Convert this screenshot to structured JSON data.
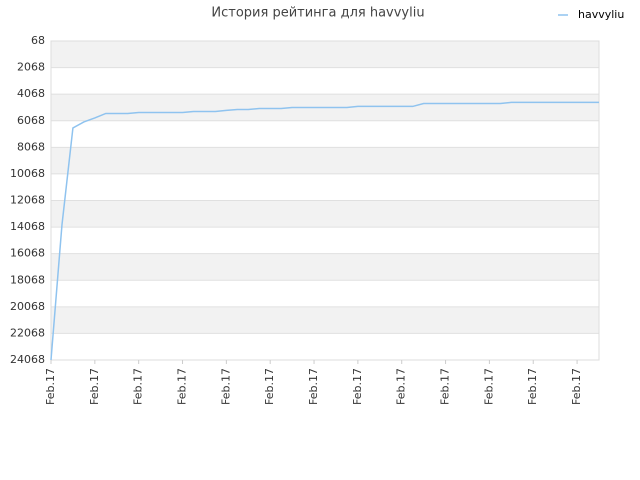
{
  "chart_data": {
    "type": "line",
    "title": "История рейтинга для havvyliu",
    "categories": [
      "Feb.17",
      null,
      null,
      null,
      "Feb.17",
      null,
      null,
      null,
      "Feb.17",
      null,
      null,
      null,
      "Feb.17",
      null,
      null,
      null,
      "Feb.17",
      null,
      null,
      null,
      "Feb.17",
      null,
      null,
      null,
      "Feb.17",
      null,
      null,
      null,
      "Feb.17",
      null,
      null,
      null,
      "Feb.17",
      null,
      null,
      null,
      "Feb.17",
      null,
      null,
      null,
      "Feb.17",
      null,
      null,
      null,
      "Feb.17",
      null,
      null,
      null,
      "Feb.17",
      null,
      null
    ],
    "series": [
      {
        "name": "havvyliu",
        "color": "#8fc3ef",
        "values": [
          24068,
          13905,
          6610,
          6160,
          5860,
          5520,
          5520,
          5520,
          5445,
          5445,
          5445,
          5445,
          5445,
          5370,
          5370,
          5370,
          5290,
          5220,
          5220,
          5145,
          5145,
          5145,
          5070,
          5070,
          5070,
          5070,
          5070,
          5070,
          4990,
          4990,
          4990,
          4990,
          4990,
          4990,
          4770,
          4770,
          4770,
          4770,
          4770,
          4770,
          4770,
          4770,
          4690,
          4690,
          4690,
          4690,
          4690,
          4690,
          4690,
          4690,
          4690
        ]
      }
    ],
    "ylim": [
      24068,
      68
    ],
    "yticks": [
      68,
      2068,
      4068,
      6068,
      8068,
      10068,
      12068,
      14068,
      16068,
      18068,
      20068,
      22068,
      24068
    ],
    "grid": true,
    "legend": "top-right"
  }
}
